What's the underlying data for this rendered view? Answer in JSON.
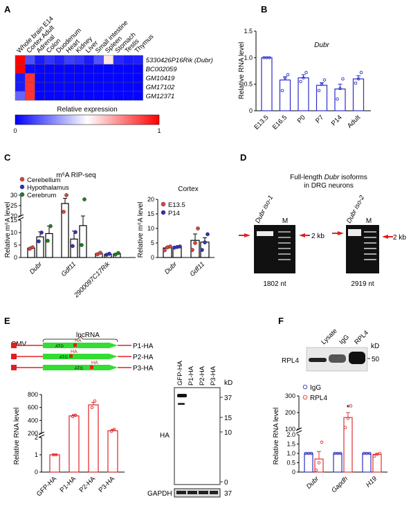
{
  "panel_letters": {
    "a": "A",
    "b": "B",
    "c": "C",
    "d": "D",
    "e": "E",
    "f": "F"
  },
  "panelA": {
    "tissues": [
      "Whole brain E14",
      "Cortex Adult",
      "Adrenal",
      "Colon",
      "Duodenum",
      "Heart",
      "Kidney",
      "Liver",
      "Small intestine",
      "Spleen",
      "Stomach",
      "Testis",
      "Thymus"
    ],
    "genes": [
      "5330426P16Rik (Dubr)",
      "BC002059",
      "GM10419",
      "GM17102",
      "GM12371"
    ],
    "matrix": [
      [
        1.0,
        0.15,
        0.05,
        0.1,
        0.06,
        0.12,
        0.1,
        0.05,
        0.16,
        0.55,
        0.08,
        0.05,
        0.06
      ],
      [
        1.0,
        0.02,
        0.01,
        0.01,
        0.01,
        0.01,
        0.01,
        0.01,
        0.01,
        0.01,
        0.01,
        0.01,
        0.01
      ],
      [
        0.05,
        0.9,
        0.01,
        0.01,
        0.01,
        0.01,
        0.01,
        0.01,
        0.01,
        0.01,
        0.01,
        0.01,
        0.01
      ],
      [
        0.05,
        0.9,
        0.01,
        0.01,
        0.01,
        0.01,
        0.01,
        0.01,
        0.01,
        0.01,
        0.01,
        0.01,
        0.01
      ],
      [
        0.2,
        0.9,
        0.01,
        0.01,
        0.01,
        0.01,
        0.01,
        0.01,
        0.01,
        0.01,
        0.01,
        0.01,
        0.01
      ]
    ],
    "colorbar_label": "Relative expression",
    "colorbar_min": "0",
    "colorbar_max": "1",
    "colors": {
      "low": "#0000ff",
      "mid": "#ffffff",
      "high": "#ff0000"
    }
  },
  "chart_data": [
    {
      "type": "bar",
      "panel": "B",
      "title": "Dubr",
      "ylabel": "Relative RNA level",
      "ylim": [
        0,
        1.5
      ],
      "yticks": [
        "0",
        "0.5",
        "1.0",
        "1.5"
      ],
      "categories": [
        "E13.5",
        "E16.5",
        "P0",
        "P7",
        "P14",
        "Adult"
      ],
      "values": [
        1.0,
        0.58,
        0.62,
        0.48,
        0.41,
        0.6
      ],
      "errors": [
        0,
        0.06,
        0.06,
        0.05,
        0.09,
        0.06
      ],
      "points": [
        [
          1.0,
          1.0,
          1.0
        ],
        [
          0.38,
          0.62,
          0.68
        ],
        [
          0.55,
          0.62,
          0.72
        ],
        [
          0.38,
          0.5,
          0.58
        ],
        [
          0.22,
          0.42,
          0.6
        ],
        [
          0.52,
          0.6,
          0.72
        ]
      ],
      "color": "#2b2bcc"
    },
    {
      "type": "bar",
      "panel": "C-left",
      "title": "m⁶A RIP-seq",
      "ylabel": "Relative m⁶A level",
      "yticks_lower": [
        "0",
        "5",
        "10",
        "15"
      ],
      "yticks_upper": [
        "20",
        "25",
        "30"
      ],
      "groups": [
        "Dubr",
        "Gdf11",
        "2900097C17Rik"
      ],
      "legend": [
        {
          "name": "Cerebellum",
          "color": "#e04040"
        },
        {
          "name": "Hypothalamus",
          "color": "#3030c0"
        },
        {
          "name": "Cerebrum",
          "color": "#208020"
        }
      ],
      "values": [
        [
          3.8,
          8.3,
          9.6
        ],
        [
          26,
          7.4,
          12.8
        ],
        [
          1.6,
          1.3,
          1.5
        ]
      ],
      "errors": [
        [
          0.4,
          2.0,
          3.0
        ],
        [
          2.5,
          3.2,
          3.8
        ],
        [
          0.3,
          0.2,
          0.3
        ]
      ],
      "points": [
        [
          [
            3.5,
            4.1
          ],
          [
            6.5,
            10.0
          ],
          [
            6.7,
            12.6
          ]
        ],
        [
          [
            22,
            30
          ],
          [
            4.6,
            10.2
          ],
          [
            5,
            28
          ]
        ],
        [
          [
            1.3,
            1.9
          ],
          [
            1.1,
            1.5
          ],
          [
            1.2,
            1.8
          ]
        ]
      ]
    },
    {
      "type": "bar",
      "panel": "C-right",
      "title": "Cortex",
      "ylabel": "Relative m⁶A level",
      "ylim": [
        0,
        20
      ],
      "yticks": [
        "0",
        "5",
        "10",
        "15",
        "20"
      ],
      "groups": [
        "Dubr",
        "Gdf11"
      ],
      "legend": [
        {
          "name": "E13.5",
          "color": "#e04040"
        },
        {
          "name": "P14",
          "color": "#3030c0"
        }
      ],
      "values": [
        [
          3.3,
          3.6
        ],
        [
          5.9,
          5.3
        ]
      ],
      "errors": [
        [
          0.4,
          0.2
        ],
        [
          2.2,
          1.5
        ]
      ],
      "points": [
        [
          [
            2.5,
            3.5,
            3.8
          ],
          [
            3.4,
            3.6,
            3.8
          ]
        ],
        [
          [
            2.6,
            5.0,
            10.0
          ],
          [
            2.6,
            5.2,
            8.0
          ]
        ]
      ]
    },
    {
      "type": "bar",
      "panel": "E",
      "ylabel": "Relative RNA level",
      "yticks_lower": [
        "0",
        "1",
        "2"
      ],
      "yticks_upper": [
        "200",
        "400",
        "600",
        "800"
      ],
      "categories": [
        "GFP-HA",
        "P1-HA",
        "P2-HA",
        "P3-HA"
      ],
      "values": [
        1.0,
        470,
        640,
        240
      ],
      "errors": [
        0.02,
        20,
        40,
        20
      ],
      "points": [
        [
          1.0,
          1.0
        ],
        [
          460,
          480
        ],
        [
          600,
          700
        ],
        [
          230,
          260
        ]
      ],
      "color": "#e02020"
    },
    {
      "type": "bar",
      "panel": "F",
      "ylabel": "Relative RNA level",
      "yticks_lower": [
        "0",
        "0.5",
        "1.0",
        "1.5",
        "2.0"
      ],
      "yticks_upper": [
        "100",
        "200",
        "300"
      ],
      "groups": [
        "Dubr",
        "Gapdh",
        "H19"
      ],
      "legend": [
        {
          "name": "IgG",
          "color": "#3030c0"
        },
        {
          "name": "RPL4",
          "color": "#e03030"
        }
      ],
      "values": [
        [
          1.0,
          0.7
        ],
        [
          1.0,
          170
        ],
        [
          1.0,
          0.95
        ]
      ],
      "errors": [
        [
          0.0,
          0.4
        ],
        [
          0.0,
          30
        ],
        [
          0.0,
          0.05
        ]
      ],
      "points": [
        [
          [
            1,
            1,
            1
          ],
          [
            0.1,
            0.5,
            1.6
          ]
        ],
        [
          [
            1,
            1,
            1
          ],
          [
            110,
            165,
            240
          ]
        ],
        [
          [
            1,
            1,
            1
          ],
          [
            0.85,
            0.95,
            1.0
          ]
        ]
      ],
      "annotation": "*"
    }
  ],
  "panelD": {
    "title_line1_pre": "Full-length ",
    "title_gene": "Dubr",
    "title_line1_post": " isoforms",
    "title_line2": "in DRG neurons",
    "gel1_lane": "Dubr iso-1",
    "gel2_lane": "Dubr iso-2",
    "marker": "M",
    "size_label": "2 kb",
    "gel1_nt": "1802 nt",
    "gel2_nt": "2919 nt"
  },
  "panelE": {
    "cmv": "CMV",
    "lncrna": "lncRNA",
    "constructs": [
      "P1-HA",
      "P2-HA",
      "P3-HA"
    ],
    "ha": "HA",
    "atg": "ATG",
    "blot_lanes": [
      "GFP-HA",
      "P1-HA",
      "P2-HA",
      "P3-HA"
    ],
    "kd": "kD",
    "kd_marks": [
      "37",
      "15",
      "10",
      "0"
    ],
    "gapdh_kd": "37",
    "blot_label": "HA",
    "loading_label": "GAPDH"
  },
  "panelF": {
    "lanes": [
      "Lysate",
      "IgG",
      "RPL4"
    ],
    "kd": "kD",
    "kd_mark": "50",
    "blot_label": "RPL4"
  }
}
